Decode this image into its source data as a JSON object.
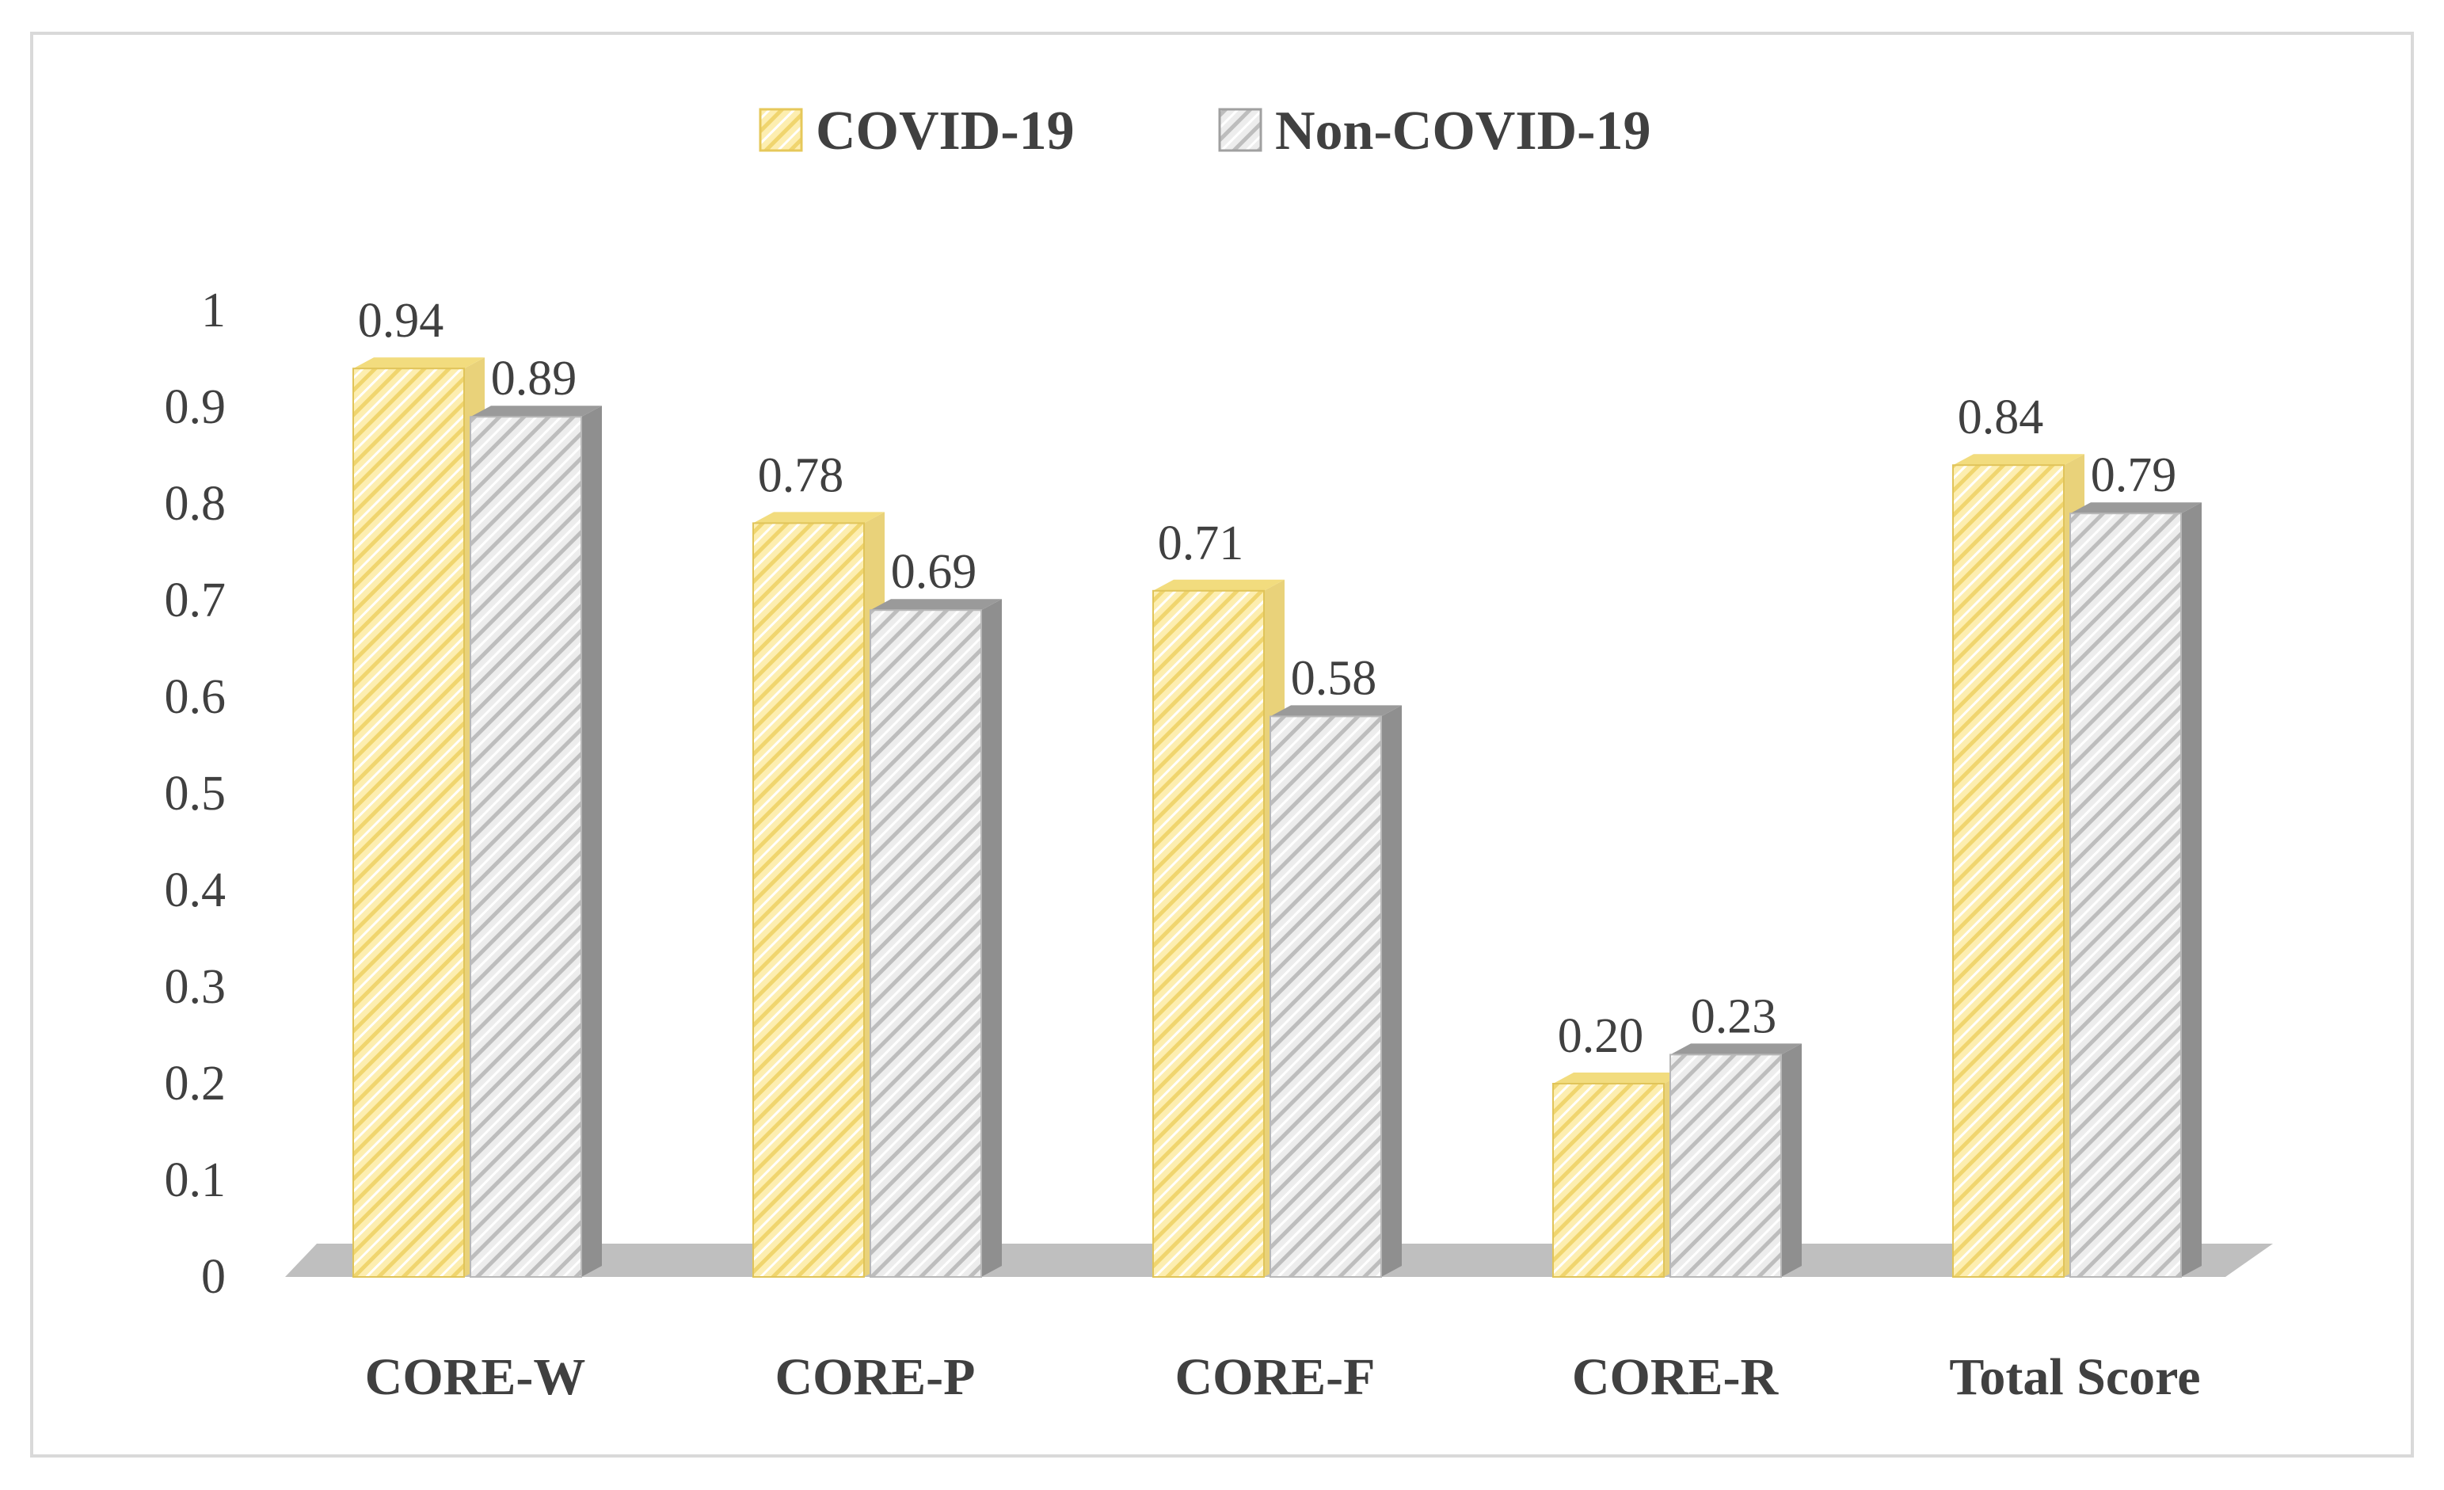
{
  "chart_data": {
    "type": "bar",
    "title": "",
    "xlabel": "",
    "ylabel": "",
    "ylim": [
      0,
      1
    ],
    "yticks": [
      "0",
      "0.1",
      "0.2",
      "0.3",
      "0.4",
      "0.5",
      "0.6",
      "0.7",
      "0.8",
      "0.9",
      "1"
    ],
    "categories": [
      "CORE-W",
      "CORE-P",
      "CORE-F",
      "CORE-R",
      "Total Score"
    ],
    "series": [
      {
        "name": "COVID-19",
        "values": [
          0.94,
          0.78,
          0.71,
          0.2,
          0.84
        ],
        "labels": [
          "0.94",
          "0.78",
          "0.71",
          "0.20",
          "0.84"
        ],
        "color": "#fdeeb0"
      },
      {
        "name": "Non-COVID-19",
        "values": [
          0.89,
          0.69,
          0.58,
          0.23,
          0.79
        ],
        "labels": [
          "0.89",
          "0.69",
          "0.58",
          "0.23",
          "0.79"
        ],
        "color": "#eeeeee"
      }
    ],
    "legend_position": "top",
    "grid": false
  }
}
